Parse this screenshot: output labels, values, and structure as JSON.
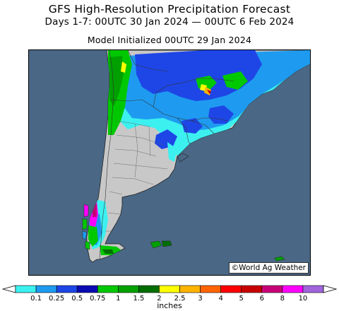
{
  "header": {
    "title": "GFS High-Resolution Precipitation Forecast",
    "period": "Days 1-7: 00UTC 30 Jan 2024 — 00UTC 6 Feb 2024",
    "init": "Model Initialized 00UTC 29 Jan 2024"
  },
  "map": {
    "credit": "©World Ag Weather",
    "ocean_color": "#4a6785",
    "land_color": "#c8c8c8"
  },
  "legend": {
    "unit": "inches",
    "ticks": [
      "0.1",
      "0.25",
      "0.5",
      "0.75",
      "1",
      "1.5",
      "2",
      "2.5",
      "3",
      "4",
      "5",
      "6",
      "8",
      "10"
    ],
    "colors": [
      "#3cf0f0",
      "#1e9bf0",
      "#1e46e6",
      "#0a0ab4",
      "#00c800",
      "#00a000",
      "#006e00",
      "#ffff00",
      "#ffb400",
      "#ff6400",
      "#ff0000",
      "#c80000",
      "#c80078",
      "#ff00ff",
      "#a064dc"
    ]
  }
}
